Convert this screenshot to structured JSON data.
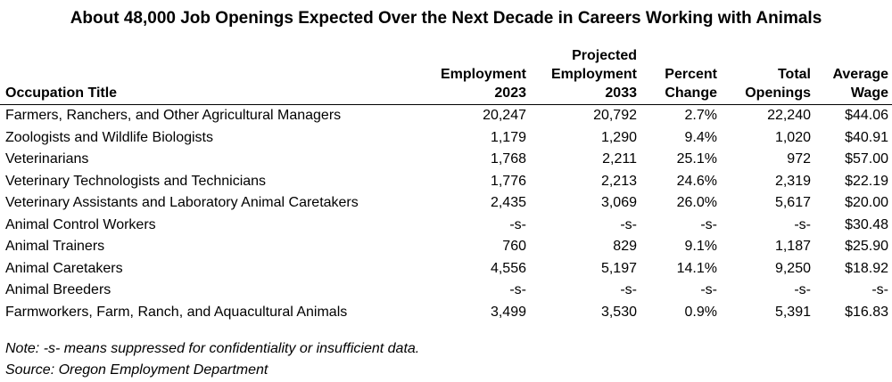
{
  "title": "About 48,000 Job Openings Expected Over the Next Decade in Careers Working with Animals",
  "headers": {
    "occupation": "Occupation Title",
    "employment_2023": [
      "Employment",
      "2023"
    ],
    "projected_2033": [
      "Projected",
      "Employment",
      "2033"
    ],
    "percent_change": [
      "Percent",
      "Change"
    ],
    "total_openings": [
      "Total",
      "Openings"
    ],
    "average_wage": [
      "Average",
      "Wage"
    ]
  },
  "rows": [
    {
      "occupation": "Farmers, Ranchers, and Other Agricultural Managers",
      "emp2023": "20,247",
      "emp2033": "20,792",
      "pct": "2.7%",
      "openings": "22,240",
      "wage": "$44.06"
    },
    {
      "occupation": "Zoologists and Wildlife Biologists",
      "emp2023": "1,179",
      "emp2033": "1,290",
      "pct": "9.4%",
      "openings": "1,020",
      "wage": "$40.91"
    },
    {
      "occupation": "Veterinarians",
      "emp2023": "1,768",
      "emp2033": "2,211",
      "pct": "25.1%",
      "openings": "972",
      "wage": "$57.00"
    },
    {
      "occupation": "Veterinary Technologists and Technicians",
      "emp2023": "1,776",
      "emp2033": "2,213",
      "pct": "24.6%",
      "openings": "2,319",
      "wage": "$22.19"
    },
    {
      "occupation": "Veterinary Assistants and Laboratory Animal Caretakers",
      "emp2023": "2,435",
      "emp2033": "3,069",
      "pct": "26.0%",
      "openings": "5,617",
      "wage": "$20.00"
    },
    {
      "occupation": "Animal Control Workers",
      "emp2023": "-s-",
      "emp2033": "-s-",
      "pct": "-s-",
      "openings": "-s-",
      "wage": "$30.48"
    },
    {
      "occupation": "Animal Trainers",
      "emp2023": "760",
      "emp2033": "829",
      "pct": "9.1%",
      "openings": "1,187",
      "wage": "$25.90"
    },
    {
      "occupation": "Animal Caretakers",
      "emp2023": "4,556",
      "emp2033": "5,197",
      "pct": "14.1%",
      "openings": "9,250",
      "wage": "$18.92"
    },
    {
      "occupation": "Animal Breeders",
      "emp2023": "-s-",
      "emp2033": "-s-",
      "pct": "-s-",
      "openings": "-s-",
      "wage": "-s-"
    },
    {
      "occupation": "Farmworkers, Farm, Ranch, and Aquacultural Animals",
      "emp2023": "3,499",
      "emp2033": "3,530",
      "pct": "0.9%",
      "openings": "5,391",
      "wage": "$16.83"
    }
  ],
  "note": "Note: -s- means suppressed for confidentiality or insufficient data.",
  "source": "Source: Oregon Employment Department"
}
